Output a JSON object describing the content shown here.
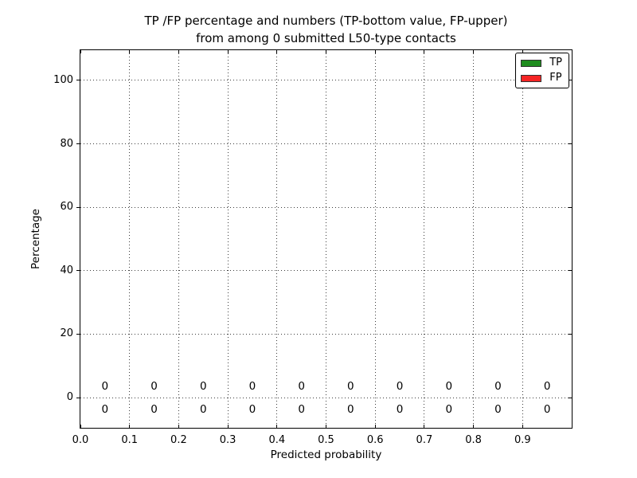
{
  "chart_data": {
    "type": "bar",
    "stacked": true,
    "title_line1": "TP /FP percentage and numbers (TP-bottom value, FP-upper)",
    "title_line2": "from among 0 submitted L50-type contacts",
    "xlabel": "Predicted probability",
    "ylabel": "Percentage",
    "xlim": [
      0.0,
      1.0
    ],
    "ylim": [
      -9.5,
      109.5
    ],
    "xticks": [
      "0.0",
      "0.1",
      "0.2",
      "0.3",
      "0.4",
      "0.5",
      "0.6",
      "0.7",
      "0.8",
      "0.9"
    ],
    "yticks": [
      0,
      20,
      40,
      60,
      80,
      100
    ],
    "grid": "dotted",
    "bar_width": 0.1,
    "bin_centers": [
      0.05,
      0.15,
      0.25,
      0.35,
      0.45,
      0.55,
      0.65,
      0.75,
      0.85,
      0.95
    ],
    "series": [
      {
        "name": "TP",
        "color": "#1e8c1e",
        "values": [
          0,
          0,
          0,
          0,
          0,
          0,
          0,
          0,
          0,
          0
        ]
      },
      {
        "name": "FP",
        "color": "#f52525",
        "values": [
          0,
          0,
          0,
          0,
          0,
          0,
          0,
          0,
          0,
          0
        ]
      }
    ],
    "legend": {
      "position": "upper-right",
      "entries": [
        {
          "label": "TP",
          "color": "#1e8c1e"
        },
        {
          "label": "FP",
          "color": "#f52525"
        }
      ]
    },
    "annotations": {
      "fp_labels": [
        "0",
        "0",
        "0",
        "0",
        "0",
        "0",
        "0",
        "0",
        "0",
        "0"
      ],
      "tp_labels": [
        "0",
        "0",
        "0",
        "0",
        "0",
        "0",
        "0",
        "0",
        "0",
        "0"
      ],
      "fp_y": 3.5,
      "tp_y": -3.7
    }
  }
}
